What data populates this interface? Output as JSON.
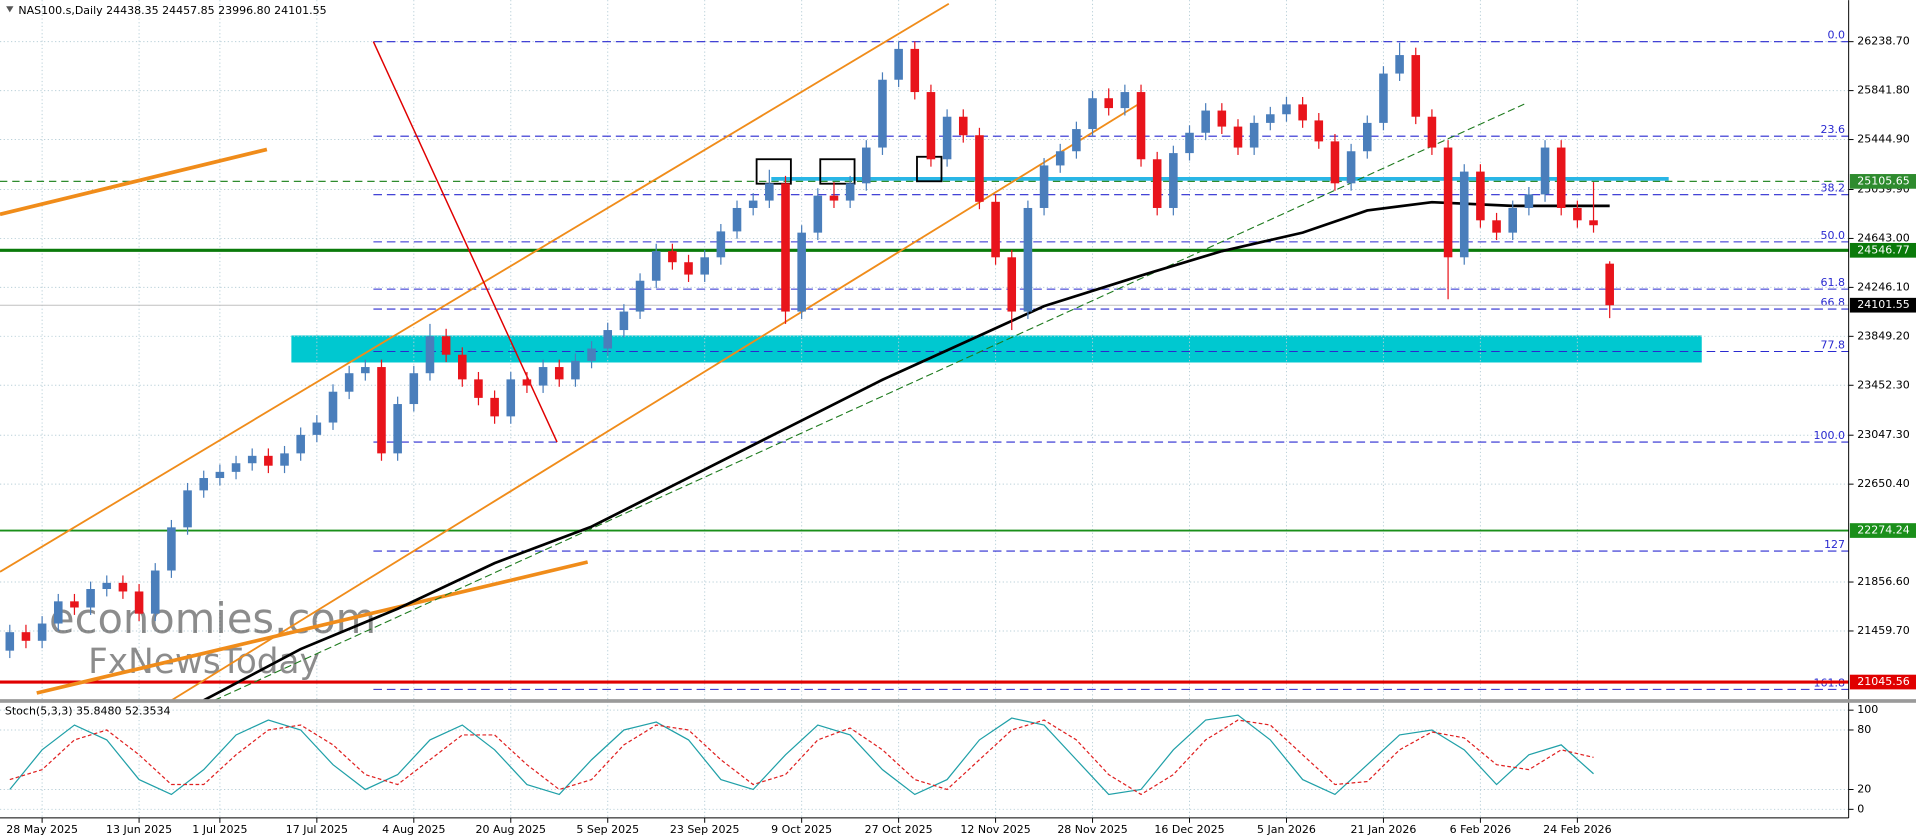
{
  "chart_data": {
    "type": "candlestick",
    "title": "NAS100.s,Daily  24438.35 24457.85 23996.80 24101.55",
    "categories": [
      null,
      null,
      "28 May 2025",
      null,
      null,
      null,
      null,
      null,
      "13 Jun 2025",
      null,
      null,
      null,
      null,
      "1 Jul 2025",
      null,
      null,
      null,
      null,
      null,
      "17 Jul 2025",
      null,
      null,
      null,
      null,
      null,
      "4 Aug 2025",
      null,
      null,
      null,
      null,
      null,
      "20 Aug 2025",
      null,
      null,
      null,
      null,
      null,
      "5 Sep 2025",
      null,
      null,
      null,
      null,
      null,
      "23 Sep 2025",
      null,
      null,
      null,
      null,
      null,
      "9 Oct 2025",
      null,
      null,
      null,
      null,
      null,
      "27 Oct 2025",
      null,
      null,
      null,
      null,
      null,
      "12 Nov 2025",
      null,
      null,
      null,
      null,
      null,
      "28 Nov 2025",
      null,
      null,
      null,
      null,
      null,
      "16 Dec 2025",
      null,
      null,
      null,
      null,
      null,
      "5 Jan 2026",
      null,
      null,
      null,
      null,
      null,
      "21 Jan 2026",
      null,
      null,
      null,
      null,
      null,
      "6 Feb 2026",
      null,
      null,
      null,
      null,
      null,
      "24 Feb 2026",
      null,
      null
    ],
    "open": [
      21300,
      21450,
      21380,
      21520,
      21700,
      21650,
      21800,
      21850,
      21780,
      21600,
      21950,
      22300,
      22600,
      22700,
      22750,
      22820,
      22880,
      22800,
      22900,
      23050,
      23150,
      23400,
      23550,
      23600,
      22900,
      23300,
      23550,
      23850,
      23700,
      23500,
      23350,
      23200,
      23500,
      23450,
      23600,
      23500,
      23650,
      23750,
      23900,
      24050,
      24300,
      24540,
      24450,
      24350,
      24490,
      24700,
      24890,
      24950,
      25090,
      24050,
      24690,
      24990,
      24950,
      25090,
      25380,
      25930,
      26180,
      25830,
      25285,
      25630,
      25480,
      24940,
      24490,
      24050,
      24890,
      25235,
      25350,
      25530,
      25780,
      25700,
      25830,
      25285,
      24890,
      25335,
      25500,
      25680,
      25550,
      25380,
      25580,
      25650,
      25730,
      25600,
      25430,
      25090,
      25350,
      25580,
      25980,
      26130,
      25630,
      25380,
      24490,
      25185,
      24790,
      24690,
      24890,
      25000,
      25380,
      24890,
      24790,
      24438.35
    ],
    "high": [
      21510,
      21510,
      21580,
      21760,
      21760,
      21860,
      21910,
      21910,
      21840,
      22010,
      22360,
      22660,
      22760,
      22810,
      22880,
      22940,
      22940,
      22960,
      23110,
      23210,
      23460,
      23610,
      23660,
      23660,
      23360,
      23610,
      23950,
      23910,
      23760,
      23560,
      23410,
      23560,
      23560,
      23660,
      23660,
      23710,
      23810,
      23960,
      24110,
      24360,
      24600,
      24600,
      24510,
      24550,
      24760,
      24950,
      25010,
      25200,
      25150,
      24750,
      25050,
      25100,
      25150,
      25440,
      25990,
      26240,
      26240,
      25890,
      25690,
      25690,
      25540,
      25000,
      24550,
      24950,
      25295,
      25410,
      25590,
      25840,
      25860,
      25890,
      25890,
      25345,
      25395,
      25560,
      25740,
      25740,
      25610,
      25640,
      25710,
      25790,
      25790,
      25660,
      25490,
      25410,
      25640,
      26040,
      26230,
      26190,
      25690,
      25440,
      25245,
      25245,
      24850,
      24950,
      25060,
      25440,
      25440,
      24950,
      25100,
      24457.85
    ],
    "low": [
      21240,
      21320,
      21320,
      21460,
      21590,
      21590,
      21740,
      21720,
      21540,
      21540,
      21890,
      22240,
      22540,
      22640,
      22690,
      22760,
      22740,
      22740,
      22840,
      22990,
      23090,
      23340,
      23490,
      22840,
      22840,
      23240,
      23490,
      23640,
      23440,
      23290,
      23140,
      23140,
      23390,
      23390,
      23440,
      23440,
      23590,
      23690,
      23840,
      23990,
      24240,
      24390,
      24290,
      24290,
      24430,
      24640,
      24830,
      24890,
      23950,
      23990,
      24630,
      24890,
      24890,
      25030,
      25320,
      25870,
      25770,
      25225,
      25225,
      25420,
      24880,
      24430,
      23900,
      23990,
      24830,
      25175,
      25290,
      25470,
      25640,
      25640,
      25225,
      24830,
      24830,
      25275,
      25440,
      25490,
      25320,
      25320,
      25520,
      25590,
      25540,
      25370,
      25030,
      25030,
      25290,
      25520,
      25920,
      25570,
      25320,
      24150,
      24430,
      24730,
      24630,
      24630,
      24830,
      24940,
      24830,
      24730,
      24690,
      23996.8
    ],
    "close": [
      21450,
      21380,
      21520,
      21700,
      21650,
      21800,
      21850,
      21780,
      21600,
      21950,
      22300,
      22600,
      22700,
      22750,
      22820,
      22880,
      22800,
      22900,
      23050,
      23150,
      23400,
      23550,
      23600,
      22900,
      23300,
      23550,
      23850,
      23700,
      23500,
      23350,
      23200,
      23500,
      23450,
      23600,
      23500,
      23650,
      23750,
      23900,
      24050,
      24300,
      24540,
      24450,
      24350,
      24490,
      24700,
      24890,
      24950,
      25090,
      24050,
      24690,
      24990,
      24950,
      25090,
      25380,
      25930,
      26180,
      25830,
      25285,
      25630,
      25480,
      24940,
      24490,
      24050,
      24890,
      25235,
      25350,
      25530,
      25780,
      25700,
      25830,
      25285,
      24890,
      25335,
      25500,
      25680,
      25550,
      25380,
      25580,
      25650,
      25730,
      25600,
      25430,
      25090,
      25350,
      25580,
      25980,
      26130,
      25630,
      25380,
      24490,
      25185,
      24790,
      24690,
      24890,
      25000,
      25380,
      24890,
      24790,
      24750,
      24101.55
    ],
    "up_color": "#4a7ebb",
    "down_color": "#e8141b",
    "ylim": [
      20897,
      26576
    ],
    "yticks": [
      {
        "value": 26238.7,
        "label": "26238.70"
      },
      {
        "value": 25841.8,
        "label": "25841.80"
      },
      {
        "value": 25444.9,
        "label": "25444.90"
      },
      {
        "value": 25039.9,
        "label": "25039.90"
      },
      {
        "value": 24643,
        "label": "24643.00"
      },
      {
        "value": 24246.1,
        "label": "24246.10"
      },
      {
        "value": 23849.2,
        "label": "23849.20"
      },
      {
        "value": 23452.3,
        "label": "23452.30"
      },
      {
        "value": 23047.3,
        "label": "23047.30"
      },
      {
        "value": 22650.4,
        "label": "22650.40"
      },
      {
        "value": 21856.6,
        "label": "21856.60"
      },
      {
        "value": 21459.7,
        "label": "21459.70"
      }
    ],
    "grid": true,
    "ma": {
      "color": "#000000",
      "x": [
        12,
        18,
        24,
        30,
        36,
        42,
        48,
        54,
        59,
        64,
        70,
        75,
        80,
        84,
        88,
        93,
        99
      ],
      "values": [
        20897,
        21313,
        21640,
        22010,
        22306,
        22703,
        23100,
        23497,
        23795,
        24094,
        24342,
        24540,
        24690,
        24870,
        24937,
        24907,
        24907
      ]
    },
    "fib_color": "#2a2ad0",
    "fib_levels": [
      {
        "label": "0.0",
        "price": 26238.7
      },
      {
        "label": "23.6",
        "price": 25472
      },
      {
        "label": "38.2",
        "price": 24998
      },
      {
        "label": "50.0",
        "price": 24615
      },
      {
        "label": "61.8",
        "price": 24232
      },
      {
        "label": "66.8",
        "price": 24070
      },
      {
        "label": "77.8",
        "price": 23726
      },
      {
        "label": "100.0",
        "price": 22992
      },
      {
        "label": "127",
        "price": 22108
      },
      {
        "label": "161.8",
        "price": 20986
      }
    ],
    "levels": [
      {
        "price": 25105.65,
        "color": "#2e8b2e",
        "style": "dashed"
      },
      {
        "price": 24546.77,
        "color": "#0a7a0a",
        "style": "thick"
      },
      {
        "price": 24101.55,
        "color": "#000000",
        "style": "current"
      },
      {
        "price": 22274.24,
        "color": "#1a8f1a",
        "style": "solid"
      },
      {
        "price": 21045.56,
        "color": "#e00000",
        "style": "thick"
      }
    ],
    "zone": {
      "from": 23637,
      "to": 23856,
      "color": "#00c8d0"
    },
    "resistance": {
      "price": 25126,
      "color": "#29b6e6"
    },
    "watermark": [
      "economies.com",
      "FxNewsToday"
    ],
    "stochastic": {
      "title": "Stoch(5,3,3) 35.8480 52.3534",
      "ylim": [
        0,
        100
      ],
      "yticks": [
        100,
        80,
        20,
        0
      ],
      "x": [
        0,
        2,
        4,
        6,
        8,
        10,
        12,
        14,
        16,
        18,
        20,
        22,
        24,
        26,
        28,
        30,
        32,
        34,
        36,
        38,
        40,
        42,
        44,
        46,
        48,
        50,
        52,
        54,
        56,
        58,
        60,
        62,
        64,
        66,
        68,
        70,
        72,
        74,
        76,
        78,
        80,
        82,
        84,
        86,
        88,
        90,
        92,
        94,
        96,
        98
      ],
      "main": {
        "color": "#20a0a8",
        "values": [
          20,
          60,
          85,
          70,
          30,
          15,
          40,
          75,
          90,
          80,
          45,
          20,
          35,
          70,
          85,
          60,
          25,
          15,
          50,
          80,
          88,
          70,
          30,
          20,
          55,
          85,
          75,
          40,
          15,
          30,
          70,
          92,
          85,
          50,
          15,
          20,
          60,
          90,
          95,
          70,
          30,
          15,
          45,
          75,
          80,
          60,
          25,
          55,
          65,
          35.848
        ]
      },
      "signal": {
        "color": "#e02020",
        "values": [
          30,
          40,
          70,
          80,
          55,
          25,
          25,
          55,
          80,
          85,
          65,
          35,
          25,
          50,
          75,
          75,
          45,
          20,
          30,
          65,
          85,
          80,
          50,
          25,
          35,
          70,
          82,
          60,
          30,
          20,
          50,
          80,
          90,
          70,
          35,
          15,
          35,
          70,
          90,
          85,
          55,
          25,
          28,
          60,
          78,
          72,
          45,
          40,
          60,
          52.3534
        ]
      }
    }
  }
}
